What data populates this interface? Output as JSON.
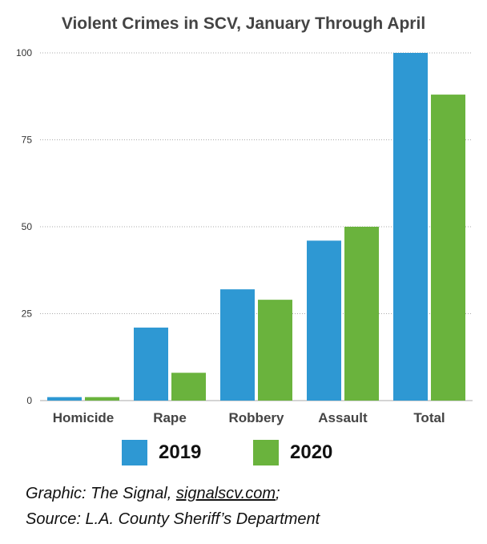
{
  "chart_data": {
    "type": "bar",
    "title": "Violent Crimes in SCV, January Through April",
    "categories": [
      "Homicide",
      "Rape",
      "Robbery",
      "Assault",
      "Total"
    ],
    "series": [
      {
        "name": "2019",
        "color": "#2e98d3",
        "values": [
          1,
          21,
          32,
          46,
          100
        ]
      },
      {
        "name": "2020",
        "color": "#6ab33d",
        "values": [
          1,
          8,
          29,
          50,
          88
        ]
      }
    ],
    "ylim": [
      0,
      100
    ],
    "yticks": [
      0,
      25,
      50,
      75,
      100
    ],
    "grid": true,
    "legend": "bottom"
  },
  "credits": {
    "line1_prefix": "Graphic: The Signal, ",
    "line1_link": "signalscv.com",
    "line1_suffix": ";",
    "line2": "Source: L.A. County Sheriff’s Department"
  }
}
